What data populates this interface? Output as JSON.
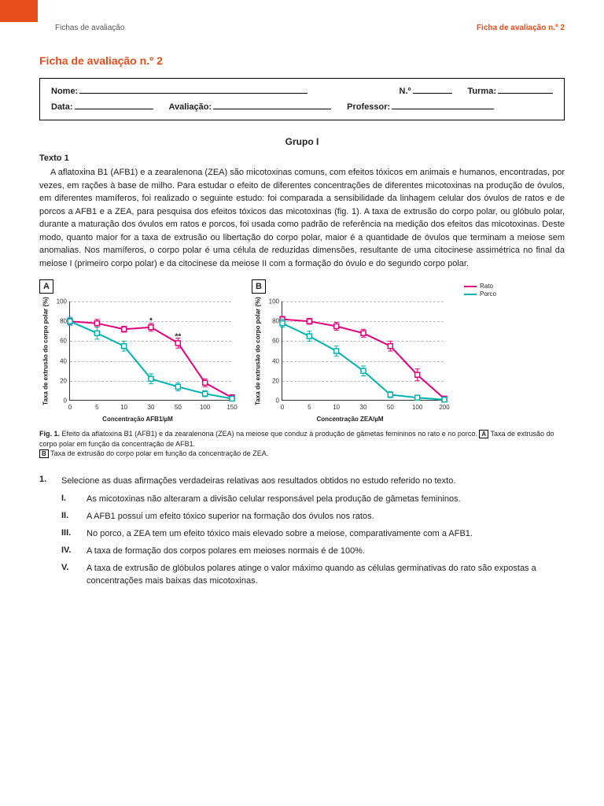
{
  "header": {
    "left": "Fichas de avaliação",
    "right": "Ficha de avaliação n.º 2"
  },
  "title": "Ficha de avaliação n.º 2",
  "fields": {
    "nome": "Nome:",
    "numero": "N.º",
    "turma": "Turma:",
    "data": "Data:",
    "avaliacao": "Avaliação:",
    "professor": "Professor:"
  },
  "group": "Grupo I",
  "texto_label": "Texto 1",
  "texto": "A aflatoxina B1 (AFB1) e a zearalenona (ZEA) são micotoxinas comuns, com efeitos tóxicos em animais e humanos, encontradas, por vezes, em rações à base de milho. Para estudar o efeito de diferentes concentrações de diferentes micotoxinas na produção de óvulos, em diferentes mamíferos, foi realizado o seguinte estudo: foi comparada a sensibilidade da linhagem celular dos óvulos de ratos e de porcos a AFB1 e a ZEA, para pesquisa dos efeitos tóxicos das micotoxinas (fig. 1). A taxa de extrusão do corpo polar, ou glóbulo polar, durante a maturação dos óvulos em ratos e porcos, foi usada como padrão de referência na medição dos efeitos das micotoxinas. Deste modo, quanto maior for a taxa de extrusão ou libertação do corpo polar, maior é a quantidade de óvulos que terminam a meiose sem anomalias. Nos mamíferos, o corpo polar é uma célula de reduzidas dimensões, resultante de uma citocinese assimétrica no final da meiose I (primeiro corpo polar) e da citocinese da meiose II com a formação do óvulo e do segundo corpo polar.",
  "chartA": {
    "panel": "A",
    "ylabel": "Taxa de extrusão do corpo polar (%)",
    "xlabel": "Concentração AFB1/µM",
    "ylim": [
      0,
      100
    ],
    "yticks": [
      0,
      20,
      40,
      60,
      80,
      100
    ],
    "xticks": [
      0,
      5,
      10,
      30,
      50,
      100,
      150
    ],
    "series": {
      "rato": {
        "color": "#e6007e",
        "label": "Rato",
        "y": [
          80,
          78,
          72,
          74,
          58,
          18,
          3
        ],
        "err": [
          3,
          4,
          3,
          4,
          5,
          4,
          3
        ]
      },
      "porco": {
        "color": "#00b3b3",
        "label": "Porco",
        "y": [
          80,
          68,
          55,
          22,
          14,
          7,
          2
        ],
        "err": [
          4,
          6,
          5,
          5,
          4,
          3,
          2
        ]
      }
    },
    "annot": [
      {
        "text": "*",
        "xi": 3,
        "y": 80
      },
      {
        "text": "**",
        "xi": 4,
        "y": 64
      }
    ]
  },
  "chartB": {
    "panel": "B",
    "ylabel": "Taxa de extrusão do corpo polar (%)",
    "xlabel": "Concentração ZEA/µM",
    "ylim": [
      0,
      100
    ],
    "yticks": [
      0,
      20,
      40,
      60,
      80,
      100
    ],
    "xticks": [
      0,
      5,
      10,
      30,
      50,
      100,
      200
    ],
    "series": {
      "rato": {
        "color": "#e6007e",
        "label": "Rato",
        "y": [
          82,
          80,
          75,
          68,
          55,
          26,
          2
        ],
        "err": [
          3,
          3,
          4,
          4,
          5,
          6,
          2
        ]
      },
      "porco": {
        "color": "#00b3b3",
        "label": "Porco",
        "y": [
          78,
          65,
          50,
          30,
          6,
          3,
          1
        ],
        "err": [
          4,
          5,
          5,
          5,
          3,
          2,
          1
        ]
      }
    },
    "annot": []
  },
  "legend": {
    "rato": "Rato",
    "porco": "Porco"
  },
  "caption": {
    "lead": "Fig. 1.",
    "t1": " Efeito da aflatoxina B1 (AFB1) e da zearalenona (ZEA) na meiose que conduz à produção de gâmetas femininos no rato e no porco. ",
    "boxA": "A",
    "t2": " Taxa de extrusão do corpo polar em função da concentração de AFB1.",
    "boxB": "B",
    "t3": " Taxa de extrusão do corpo polar em função da concentração de ZEA."
  },
  "q1": {
    "num": "1.",
    "text": "Selecione as duas afirmações verdadeiras relativas aos resultados obtidos no estudo referido no texto.",
    "opts": [
      {
        "n": "I.",
        "t": "As micotoxinas não alteraram a divisão celular responsável pela produção de gâmetas femininos."
      },
      {
        "n": "II.",
        "t": "A AFB1 possui um efeito tóxico superior na formação dos óvulos nos ratos."
      },
      {
        "n": "III.",
        "t": "No porco, a ZEA tem um efeito tóxico mais elevado sobre a meiose, comparativamente com a AFB1."
      },
      {
        "n": "IV.",
        "t": "A taxa de formação dos corpos polares em meioses normais é de 100%."
      },
      {
        "n": "V.",
        "t": "A taxa de extrusão de glóbulos polares atinge o valor máximo quando as células germinativas do rato são expostas a concentrações mais baixas das micotoxinas."
      }
    ]
  }
}
